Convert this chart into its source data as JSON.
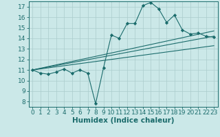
{
  "bg_color": "#cbe8e8",
  "line_color": "#1a6b6b",
  "grid_color": "#aacccc",
  "xlabel": "Humidex (Indice chaleur)",
  "xlabel_fontsize": 7.5,
  "tick_fontsize": 6.5,
  "ylim": [
    7.5,
    17.5
  ],
  "xlim": [
    -0.5,
    23.5
  ],
  "yticks": [
    8,
    9,
    10,
    11,
    12,
    13,
    14,
    15,
    16,
    17
  ],
  "xticks": [
    0,
    1,
    2,
    3,
    4,
    5,
    6,
    7,
    8,
    9,
    10,
    11,
    12,
    13,
    14,
    15,
    16,
    17,
    18,
    19,
    20,
    21,
    22,
    23
  ],
  "series1_x": [
    0,
    1,
    2,
    3,
    4,
    5,
    6,
    7,
    8,
    9,
    10,
    11,
    12,
    13,
    14,
    15,
    16,
    17,
    18,
    19,
    20,
    21,
    22,
    23
  ],
  "series1_y": [
    11.0,
    10.7,
    10.6,
    10.8,
    11.1,
    10.7,
    11.0,
    10.7,
    7.8,
    11.2,
    14.3,
    14.0,
    15.4,
    15.4,
    17.1,
    17.4,
    16.8,
    15.5,
    16.2,
    14.8,
    14.4,
    14.5,
    14.2,
    14.1
  ],
  "series2_x": [
    0,
    23
  ],
  "series2_y": [
    11.0,
    14.2
  ],
  "series3_x": [
    0,
    23
  ],
  "series3_y": [
    11.0,
    13.3
  ],
  "series4_x": [
    0,
    23
  ],
  "series4_y": [
    11.0,
    14.7
  ]
}
